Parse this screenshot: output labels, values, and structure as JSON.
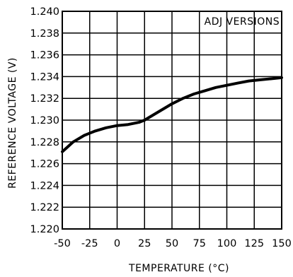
{
  "chart_data": {
    "type": "line",
    "title": "",
    "annotation": "ADJ VERSIONS",
    "xlabel": "TEMPERATURE (°C)",
    "ylabel": "REFERENCE VOLTAGE (V)",
    "xlim": [
      -50,
      150
    ],
    "ylim": [
      1.22,
      1.24
    ],
    "xticks": [
      -50,
      -25,
      0,
      25,
      50,
      75,
      100,
      125,
      150
    ],
    "yticks": [
      1.22,
      1.222,
      1.224,
      1.226,
      1.228,
      1.23,
      1.232,
      1.234,
      1.236,
      1.238,
      1.24
    ],
    "xtick_labels": [
      "-50",
      "-25",
      "0",
      "25",
      "50",
      "75",
      "100",
      "125",
      "150"
    ],
    "ytick_labels": [
      "1.220",
      "1.222",
      "1.224",
      "1.226",
      "1.228",
      "1.230",
      "1.232",
      "1.234",
      "1.236",
      "1.238",
      "1.240"
    ],
    "grid": true,
    "series": [
      {
        "x": [
          -50,
          -40,
          -30,
          -20,
          -10,
          0,
          10,
          20,
          25,
          30,
          40,
          50,
          60,
          70,
          80,
          90,
          100,
          110,
          120,
          130,
          140,
          150
        ],
        "y": [
          1.2271,
          1.228,
          1.2286,
          1.229,
          1.2293,
          1.2295,
          1.2296,
          1.2298,
          1.23,
          1.2303,
          1.2309,
          1.2315,
          1.232,
          1.2324,
          1.2327,
          1.233,
          1.2332,
          1.2334,
          1.2336,
          1.2337,
          1.2338,
          1.2339
        ]
      }
    ]
  }
}
